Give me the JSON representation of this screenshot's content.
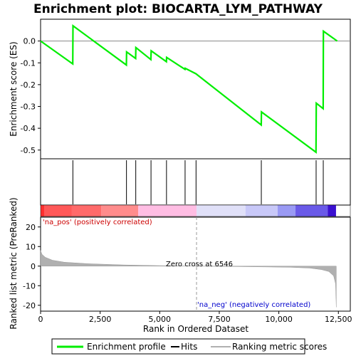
{
  "chart_data": {
    "type": "line",
    "title": "Enrichment plot: BIOCARTA_LYM_PATHWAY",
    "top_panel": {
      "ylabel": "Enrichment score (ES)",
      "ylim": [
        -0.54,
        0.1
      ],
      "yticks": [
        0.0,
        -0.1,
        -0.2,
        -0.3,
        -0.4,
        -0.5
      ],
      "ytick_labels": [
        "0.0",
        "-0.1",
        "-0.2",
        "-0.3",
        "-0.4",
        "-0.5"
      ],
      "enrichment_profile": [
        {
          "x": 0,
          "y": 0.0
        },
        {
          "x": 1350,
          "y": -0.105
        },
        {
          "x": 1360,
          "y": 0.07
        },
        {
          "x": 3600,
          "y": -0.11
        },
        {
          "x": 3610,
          "y": -0.05
        },
        {
          "x": 3990,
          "y": -0.08
        },
        {
          "x": 4000,
          "y": -0.03
        },
        {
          "x": 4630,
          "y": -0.085
        },
        {
          "x": 4640,
          "y": -0.045
        },
        {
          "x": 5280,
          "y": -0.095
        },
        {
          "x": 5290,
          "y": -0.075
        },
        {
          "x": 6060,
          "y": -0.13
        },
        {
          "x": 6070,
          "y": -0.125
        },
        {
          "x": 6520,
          "y": -0.15
        },
        {
          "x": 9260,
          "y": -0.385
        },
        {
          "x": 9270,
          "y": -0.325
        },
        {
          "x": 11560,
          "y": -0.51
        },
        {
          "x": 11570,
          "y": -0.285
        },
        {
          "x": 11860,
          "y": -0.31
        },
        {
          "x": 11870,
          "y": 0.045
        },
        {
          "x": 12450,
          "y": 0.0
        }
      ]
    },
    "hits": [
      1355,
      3605,
      3995,
      4635,
      5285,
      6065,
      6525,
      9265,
      11565,
      11865
    ],
    "heatmap_bar": {
      "segments": [
        {
          "from": 0,
          "to": 150,
          "color": "#ff3030"
        },
        {
          "from": 150,
          "to": 1300,
          "color": "#ff5858"
        },
        {
          "from": 1300,
          "to": 2550,
          "color": "#ff6a6a"
        },
        {
          "from": 2550,
          "to": 4100,
          "color": "#ff8c8c"
        },
        {
          "from": 4100,
          "to": 6546,
          "color": "#ffbde3"
        },
        {
          "from": 6546,
          "to": 8600,
          "color": "#e0e0f8"
        },
        {
          "from": 8600,
          "to": 9950,
          "color": "#c8c8f8"
        },
        {
          "from": 9950,
          "to": 10700,
          "color": "#9a9af4"
        },
        {
          "from": 10700,
          "to": 12050,
          "color": "#6a5ae8"
        },
        {
          "from": 12050,
          "to": 12400,
          "color": "#3a10d0"
        }
      ]
    },
    "bottom_panel": {
      "ylabel": "Ranked list metric (PreRanked)",
      "ylim": [
        -23,
        25
      ],
      "yticks": [
        20,
        10,
        0,
        -10,
        -20
      ],
      "ytick_labels": [
        "20",
        "10",
        "0",
        "-10",
        "-20"
      ],
      "metric_scores": [
        {
          "x": 0,
          "y": 8.0
        },
        {
          "x": 60,
          "y": 6.0
        },
        {
          "x": 200,
          "y": 4.5
        },
        {
          "x": 500,
          "y": 3.0
        },
        {
          "x": 1000,
          "y": 2.0
        },
        {
          "x": 2000,
          "y": 1.2
        },
        {
          "x": 3500,
          "y": 0.6
        },
        {
          "x": 5000,
          "y": 0.25
        },
        {
          "x": 6546,
          "y": 0.0
        },
        {
          "x": 8000,
          "y": -0.2
        },
        {
          "x": 9500,
          "y": -0.4
        },
        {
          "x": 10500,
          "y": -0.6
        },
        {
          "x": 11300,
          "y": -1.0
        },
        {
          "x": 11800,
          "y": -1.8
        },
        {
          "x": 12100,
          "y": -2.8
        },
        {
          "x": 12300,
          "y": -5.0
        },
        {
          "x": 12380,
          "y": -9.0
        },
        {
          "x": 12410,
          "y": -21.0
        }
      ],
      "annotations": {
        "pos_label": "'na_pos' (positively correlated)",
        "neg_label": "'na_neg' (negatively correlated)",
        "zero_cross": "Zero cross at 6546",
        "pos_color": "#cc0000",
        "neg_color": "#0000cc"
      },
      "zero_cross_x": 6546
    },
    "xlabel": "Rank in Ordered Dataset",
    "xlim": [
      0,
      13000
    ],
    "xticks": [
      0,
      2500,
      5000,
      7500,
      10000,
      12500
    ],
    "xtick_labels": [
      "0",
      "2,500",
      "5,000",
      "7,500",
      "10,000",
      "12,500"
    ],
    "legend": {
      "placement": "bottom",
      "entries": [
        {
          "label": "Enrichment profile",
          "color": "#00ee00"
        },
        {
          "label": "Hits",
          "color": "#000000"
        },
        {
          "label": "Ranking metric scores",
          "color": "#b0b0b0"
        }
      ]
    },
    "colors": {
      "profile": "#00ee00",
      "hits": "#000000",
      "metric_fill": "#b0b0b0",
      "zero_line": "#c0c0c0"
    }
  }
}
